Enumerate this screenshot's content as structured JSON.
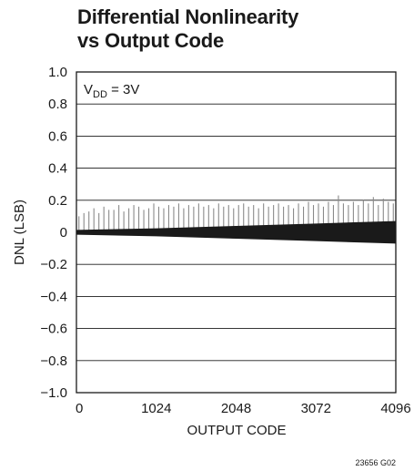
{
  "chart_data": {
    "type": "line",
    "title_line1": "Differential Nonlinearity",
    "title_line2": "vs Output Code",
    "xlabel": "OUTPUT CODE",
    "ylabel": "DNL (LSB)",
    "xlim": [
      0,
      4096
    ],
    "ylim": [
      -1.0,
      1.0
    ],
    "x_ticks": [
      0,
      1024,
      2048,
      3072,
      4096
    ],
    "x_tick_labels": [
      "0",
      "1024",
      "2048",
      "3072",
      "4096"
    ],
    "y_ticks": [
      1.0,
      0.8,
      0.6,
      0.4,
      0.2,
      0,
      -0.2,
      -0.4,
      -0.6,
      -0.8,
      -1.0
    ],
    "y_tick_labels": [
      "1.0",
      "0.8",
      "0.6",
      "0.4",
      "0.2",
      "0",
      "−0.2",
      "−0.4",
      "−0.6",
      "−0.8",
      "−1.0"
    ],
    "grid": "horizontal",
    "annotation": {
      "base": "V",
      "sub": "DD",
      "rest": " = 3V"
    },
    "footnote": "23656 G02",
    "series": [
      {
        "band_upper": [
          [
            0,
            0.015
          ],
          [
            1024,
            0.025
          ],
          [
            2048,
            0.04
          ],
          [
            3072,
            0.055
          ],
          [
            4096,
            0.07
          ]
        ],
        "band_lower": [
          [
            0,
            -0.015
          ],
          [
            1024,
            -0.025
          ],
          [
            2048,
            -0.04
          ],
          [
            3072,
            -0.055
          ],
          [
            4096,
            -0.07
          ]
        ],
        "spikes": [
          [
            32,
            0.1
          ],
          [
            96,
            0.12
          ],
          [
            160,
            0.13
          ],
          [
            224,
            0.15
          ],
          [
            288,
            0.12
          ],
          [
            352,
            0.16
          ],
          [
            416,
            0.14
          ],
          [
            480,
            0.14
          ],
          [
            544,
            0.17
          ],
          [
            608,
            0.13
          ],
          [
            672,
            0.15
          ],
          [
            736,
            0.17
          ],
          [
            800,
            0.16
          ],
          [
            864,
            0.14
          ],
          [
            928,
            0.15
          ],
          [
            992,
            0.18
          ],
          [
            1056,
            0.16
          ],
          [
            1120,
            0.15
          ],
          [
            1184,
            0.17
          ],
          [
            1248,
            0.16
          ],
          [
            1312,
            0.18
          ],
          [
            1376,
            0.15
          ],
          [
            1440,
            0.17
          ],
          [
            1504,
            0.16
          ],
          [
            1568,
            0.18
          ],
          [
            1632,
            0.16
          ],
          [
            1696,
            0.17
          ],
          [
            1760,
            0.15
          ],
          [
            1824,
            0.18
          ],
          [
            1888,
            0.16
          ],
          [
            1952,
            0.17
          ],
          [
            2016,
            0.15
          ],
          [
            2080,
            0.17
          ],
          [
            2144,
            0.18
          ],
          [
            2208,
            0.16
          ],
          [
            2272,
            0.17
          ],
          [
            2336,
            0.15
          ],
          [
            2400,
            0.18
          ],
          [
            2464,
            0.16
          ],
          [
            2528,
            0.17
          ],
          [
            2592,
            0.18
          ],
          [
            2656,
            0.16
          ],
          [
            2720,
            0.17
          ],
          [
            2784,
            0.15
          ],
          [
            2848,
            0.18
          ],
          [
            2912,
            0.16
          ],
          [
            2976,
            0.19
          ],
          [
            3040,
            0.17
          ],
          [
            3104,
            0.18
          ],
          [
            3168,
            0.16
          ],
          [
            3232,
            0.19
          ],
          [
            3296,
            0.17
          ],
          [
            3360,
            0.23
          ],
          [
            3424,
            0.18
          ],
          [
            3488,
            0.17
          ],
          [
            3552,
            0.19
          ],
          [
            3616,
            0.17
          ],
          [
            3680,
            0.2
          ],
          [
            3744,
            0.18
          ],
          [
            3808,
            0.22
          ],
          [
            3872,
            0.17
          ],
          [
            3936,
            0.21
          ],
          [
            4000,
            0.19
          ],
          [
            4064,
            0.18
          ]
        ]
      }
    ]
  }
}
